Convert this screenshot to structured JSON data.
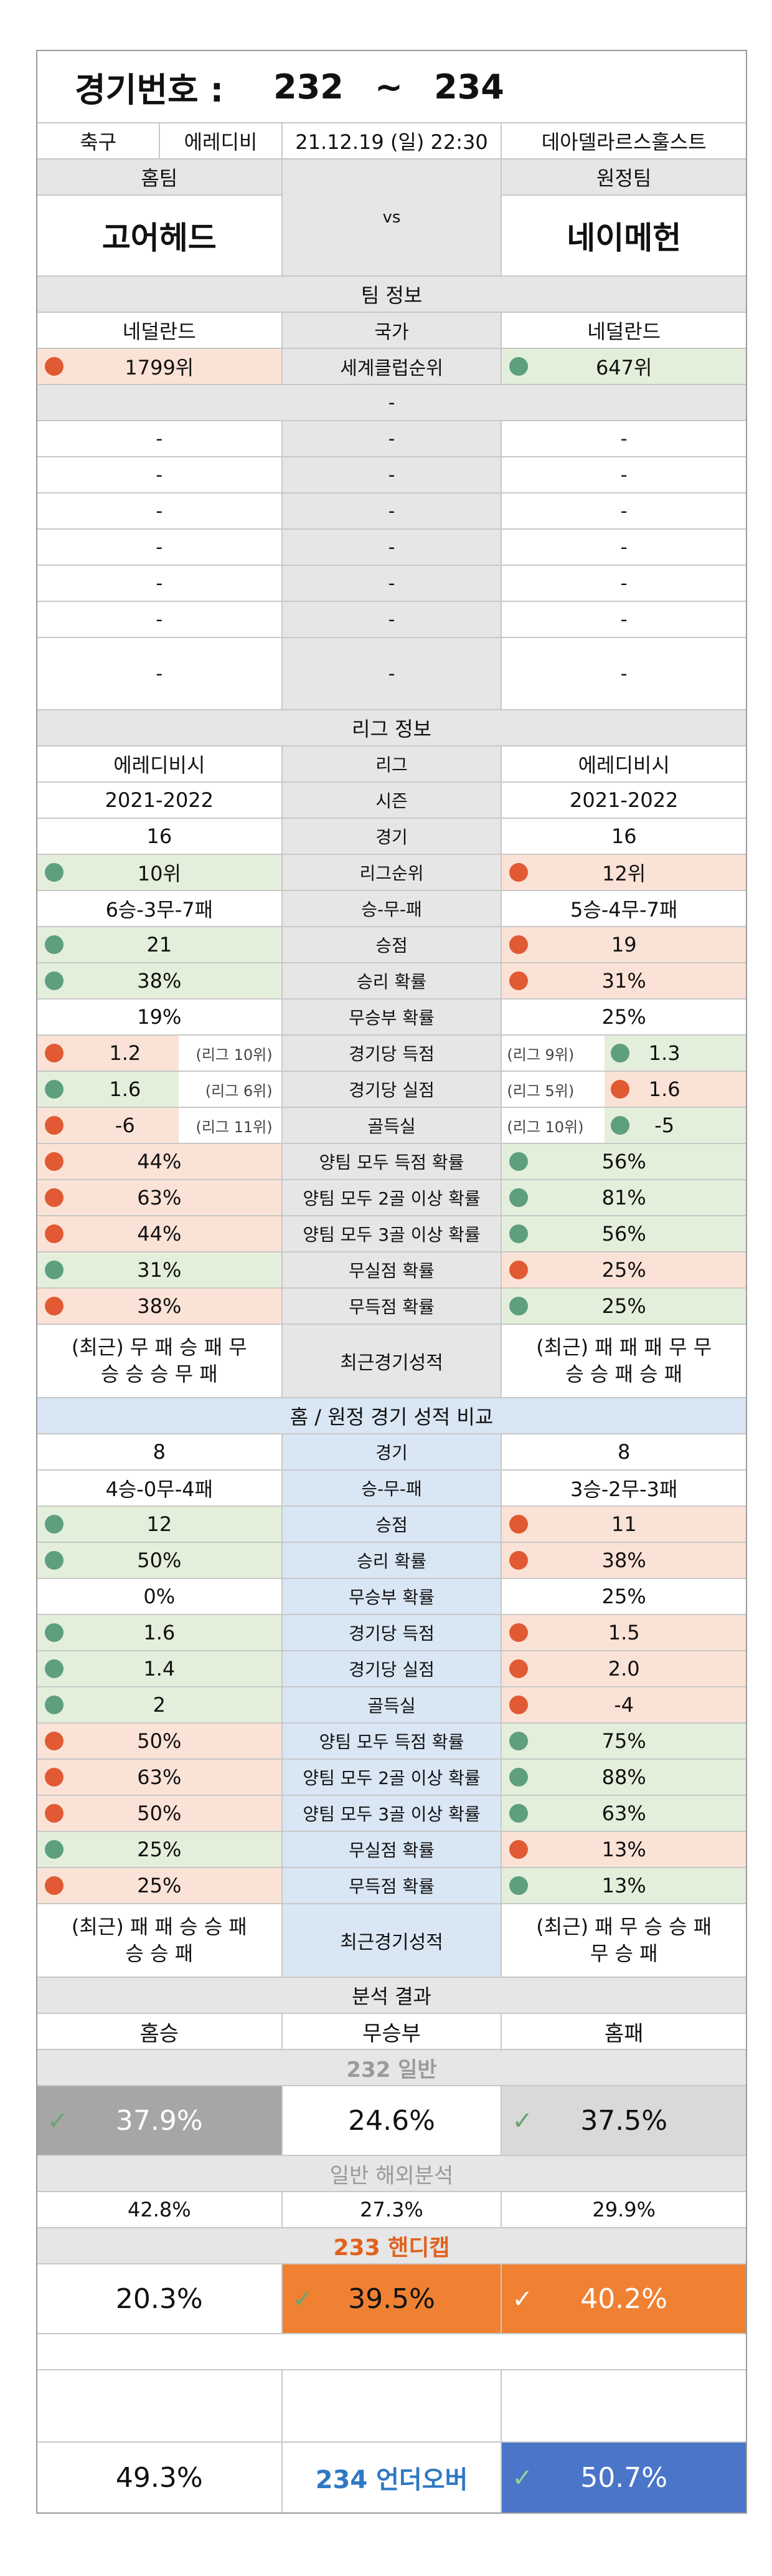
{
  "header": {
    "label": "경기번호 :",
    "from": "232",
    "tilde": "~",
    "to": "234"
  },
  "match": {
    "sport": "축구",
    "league": "에레디비",
    "datetime": "21.12.19 (일) 22:30",
    "venue": "데아델라르스훌스트"
  },
  "teams": {
    "home_label": "홈팀",
    "away_label": "원정팀",
    "home": "고어헤드",
    "vs": "vs",
    "away": "네이메헌"
  },
  "team_info": {
    "title": "팀 정보",
    "country": {
      "home": "네덜란드",
      "label": "국가",
      "away": "네덜란드"
    },
    "rank": {
      "home": "1799위",
      "label": "세계클럽순위",
      "away": "647위"
    },
    "bar": "-",
    "blank_rows": [
      {
        "home": "-",
        "label": "-",
        "away": "-"
      },
      {
        "home": "-",
        "label": "-",
        "away": "-"
      },
      {
        "home": "-",
        "label": "-",
        "away": "-"
      },
      {
        "home": "-",
        "label": "-",
        "away": "-"
      },
      {
        "home": "-",
        "label": "-",
        "away": "-"
      },
      {
        "home": "-",
        "label": "-",
        "away": "-"
      },
      {
        "home": "-",
        "label": "-",
        "away": "-"
      }
    ]
  },
  "league_info": {
    "title": "리그 정보",
    "rows": [
      {
        "home": "에레디비시",
        "label": "리그",
        "away": "에레디비시"
      },
      {
        "home": "2021-2022",
        "label": "시즌",
        "away": "2021-2022"
      },
      {
        "home": "16",
        "label": "경기",
        "away": "16"
      },
      {
        "home": "10위",
        "label": "리그순위",
        "away": "12위"
      },
      {
        "home": "6승-3무-7패",
        "label": "승-무-패",
        "away": "5승-4무-7패"
      },
      {
        "home": "21",
        "label": "승점",
        "away": "19"
      },
      {
        "home": "38%",
        "label": "승리 확률",
        "away": "31%"
      },
      {
        "home": "19%",
        "label": "무승부 확률",
        "away": "25%"
      },
      {
        "home": "1.2",
        "home_sub": "(리그 10위)",
        "label": "경기당 득점",
        "away": "1.3",
        "away_sub": "(리그 9위)"
      },
      {
        "home": "1.6",
        "home_sub": "(리그 6위)",
        "label": "경기당 실점",
        "away": "1.6",
        "away_sub": "(리그 5위)"
      },
      {
        "home": "-6",
        "home_sub": "(리그 11위)",
        "label": "골득실",
        "away": "-5",
        "away_sub": "(리그 10위)"
      },
      {
        "home": "44%",
        "label": "양팀 모두 득점 확률",
        "away": "56%"
      },
      {
        "home": "63%",
        "label": "양팀 모두 2골 이상 확률",
        "away": "81%"
      },
      {
        "home": "44%",
        "label": "양팀 모두 3골 이상 확률",
        "away": "56%"
      },
      {
        "home": "31%",
        "label": "무실점 확률",
        "away": "25%"
      },
      {
        "home": "38%",
        "label": "무득점 확률",
        "away": "25%"
      }
    ],
    "recent": {
      "home_line1": "(최근) 무 패 승 패 무",
      "home_line2": "승 승 승 무 패",
      "label": "최근경기성적",
      "away_line1": "(최근) 패 패 패 무 무",
      "away_line2": "승 승 패 승 패"
    }
  },
  "ha_compare": {
    "title": "홈 / 원정 경기 성적 비교",
    "rows": [
      {
        "home": "8",
        "label": "경기",
        "away": "8"
      },
      {
        "home": "4승-0무-4패",
        "label": "승-무-패",
        "away": "3승-2무-3패"
      },
      {
        "home": "12",
        "label": "승점",
        "away": "11"
      },
      {
        "home": "50%",
        "label": "승리 확률",
        "away": "38%"
      },
      {
        "home": "0%",
        "label": "무승부 확률",
        "away": "25%"
      },
      {
        "home": "1.6",
        "label": "경기당 득점",
        "away": "1.5"
      },
      {
        "home": "1.4",
        "label": "경기당 실점",
        "away": "2.0"
      },
      {
        "home": "2",
        "label": "골득실",
        "away": "-4"
      },
      {
        "home": "50%",
        "label": "양팀 모두 득점 확률",
        "away": "75%"
      },
      {
        "home": "63%",
        "label": "양팀 모두 2골 이상 확률",
        "away": "88%"
      },
      {
        "home": "50%",
        "label": "양팀 모두 3골 이상 확률",
        "away": "63%"
      },
      {
        "home": "25%",
        "label": "무실점 확률",
        "away": "13%"
      },
      {
        "home": "25%",
        "label": "무득점 확률",
        "away": "13%"
      }
    ],
    "recent": {
      "home_line1": "(최근) 패 패 승 승 패",
      "home_line2": "승 승 패",
      "label": "최근경기성적",
      "away_line1": "(최근) 패 무 승 승 패",
      "away_line2": "무 승 패"
    }
  },
  "analysis": {
    "title": "분석 결과",
    "cols": {
      "win": "홈승",
      "draw": "무승부",
      "loss": "홈패"
    },
    "general_title": "232 일반",
    "general": {
      "win": "37.9%",
      "draw": "24.6%",
      "loss": "37.5%"
    },
    "overseas_title": "일반 해외분석",
    "overseas": {
      "win": "42.8%",
      "draw": "27.3%",
      "loss": "29.9%"
    },
    "handicap_title": "233 핸디캡",
    "handicap": {
      "win": "20.3%",
      "draw": "39.5%",
      "loss": "40.2%"
    },
    "underover": {
      "under": "49.3%",
      "label": "234 언더오버",
      "over": "50.7%"
    }
  },
  "colors": {
    "lose_dot": "#e15a33",
    "win_dot": "#5e9f7e",
    "accent_orange": "#f08133",
    "accent_blue": "#4a75c9",
    "handicap_title": "#e0621f",
    "underover_label": "#2f78c4"
  }
}
